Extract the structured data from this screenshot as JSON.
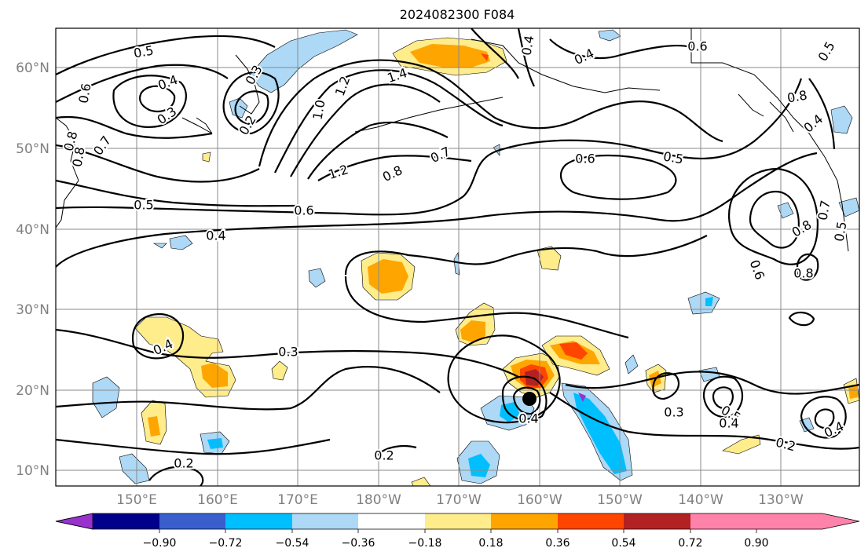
{
  "title": "2024082300 F084",
  "lat_labels": [
    "60°N",
    "50°N",
    "40°N",
    "30°N",
    "20°N",
    "10°N"
  ],
  "lon_labels": [
    "150°E",
    "160°E",
    "170°E",
    "180°W",
    "170°W",
    "160°W",
    "150°W",
    "140°W",
    "130°W"
  ],
  "colorbar": {
    "tick_labels": [
      "−0.90",
      "−0.72",
      "−0.54",
      "−0.36",
      "−0.18",
      "0.18",
      "0.36",
      "0.54",
      "0.72",
      "0.90"
    ],
    "colors": [
      "#9932cc",
      "#00008b",
      "#3a5fcd",
      "#00bfff",
      "#add8f6",
      "#ffffff",
      "#ffec8b",
      "#ffa500",
      "#ff4500",
      "#b22222",
      "#ff82ab"
    ]
  },
  "contour_labels": [
    {
      "text": "0.5"
    },
    {
      "text": "0.4"
    },
    {
      "text": "0.3"
    },
    {
      "text": "0.2"
    },
    {
      "text": "0.6"
    },
    {
      "text": "0.7"
    },
    {
      "text": "0.8"
    },
    {
      "text": "1.0"
    },
    {
      "text": "1.2"
    },
    {
      "text": "1.4"
    },
    {
      "text": "0.4"
    },
    {
      "text": "0.6"
    },
    {
      "text": "0.5"
    },
    {
      "text": "0.8"
    },
    {
      "text": "1.2"
    },
    {
      "text": "0.8"
    },
    {
      "text": "0.7"
    },
    {
      "text": "0.5"
    },
    {
      "text": "0.6"
    },
    {
      "text": "0.4"
    },
    {
      "text": "0.4"
    },
    {
      "text": "0.5"
    },
    {
      "text": "0.6"
    },
    {
      "text": "0.4"
    },
    {
      "text": "0.8"
    },
    {
      "text": "0.7"
    },
    {
      "text": "0.5"
    },
    {
      "text": "0.6"
    },
    {
      "text": "0.8"
    },
    {
      "text": "0.4"
    },
    {
      "text": "0.3"
    },
    {
      "text": "0.4"
    },
    {
      "text": "0.3"
    },
    {
      "text": "0.5"
    },
    {
      "text": "0.4"
    },
    {
      "text": "0.4"
    },
    {
      "text": "0.2"
    },
    {
      "text": "0.2"
    },
    {
      "text": "0.2"
    },
    {
      "text": "0.3"
    },
    {
      "text": "0.8"
    }
  ]
}
